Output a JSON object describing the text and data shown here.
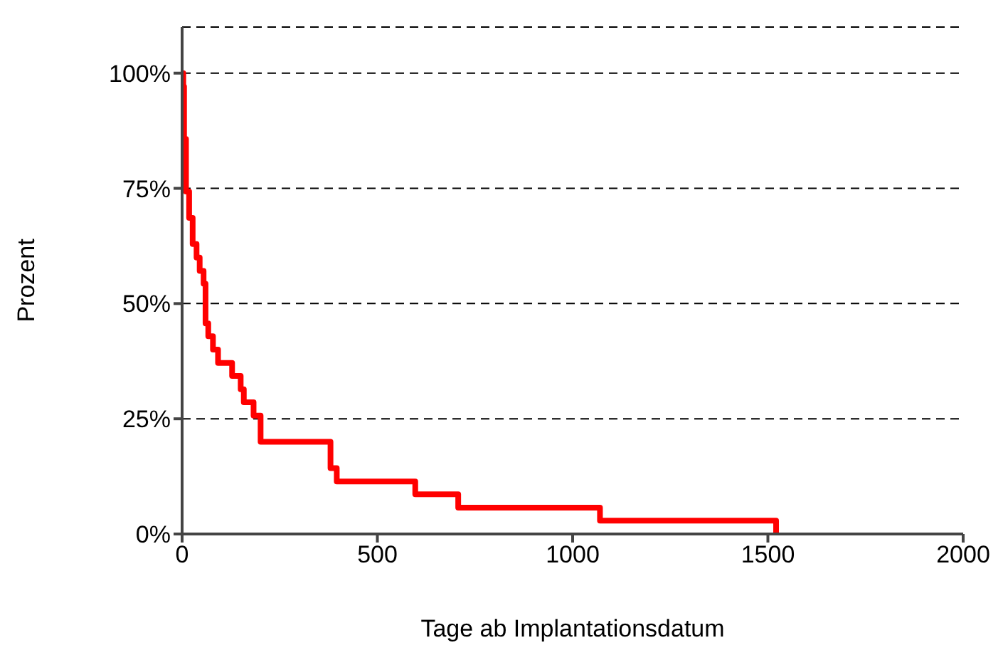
{
  "chart_data": {
    "type": "step",
    "xlabel": "Tage ab Implantationsdatum",
    "ylabel": "Prozent",
    "x": [
      0,
      3,
      5,
      10,
      18,
      27,
      37,
      45,
      55,
      60,
      67,
      79,
      92,
      128,
      150,
      158,
      183,
      201,
      380,
      396,
      597,
      707,
      1070,
      1521
    ],
    "series": [
      {
        "color": "#ff0000",
        "values": [
          100,
          97.1,
          85.7,
          74.3,
          68.6,
          62.9,
          60,
          57.1,
          54.3,
          45.7,
          42.9,
          40,
          37.1,
          34.3,
          31.4,
          28.6,
          25.7,
          20,
          14.3,
          11.4,
          8.6,
          5.7,
          2.9,
          0
        ]
      }
    ],
    "xlim": [
      0,
      2000
    ],
    "xticks": [
      0,
      500,
      1000,
      1500,
      2000
    ],
    "ylim": [
      0,
      110
    ],
    "yticks": [
      {
        "value": 0,
        "label": "0%"
      },
      {
        "value": 25,
        "label": "25%"
      },
      {
        "value": 50,
        "label": "50%"
      },
      {
        "value": 75,
        "label": "75%"
      },
      {
        "value": 100,
        "label": "100%"
      }
    ],
    "grid": "y",
    "legend": false,
    "marker": "none",
    "line_style": "solid"
  }
}
